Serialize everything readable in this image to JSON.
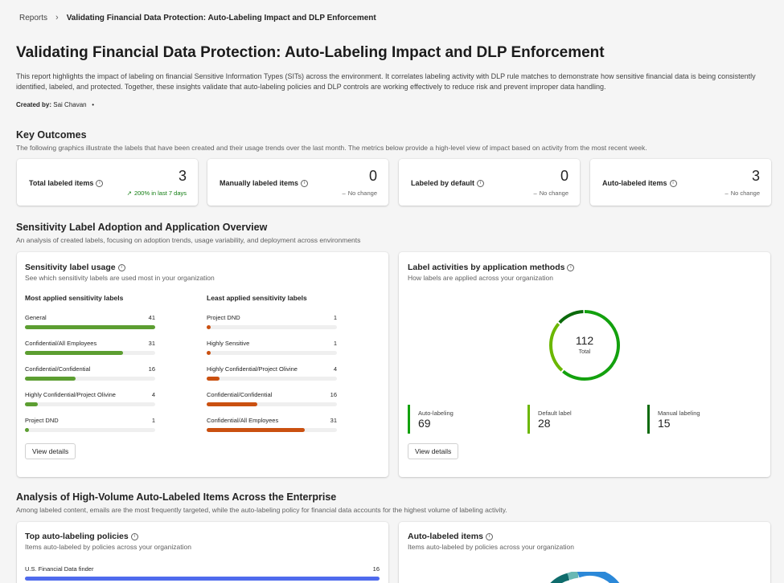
{
  "breadcrumb": {
    "root": "Reports",
    "current": "Validating Financial Data Protection: Auto-Labeling Impact and DLP Enforcement"
  },
  "report": {
    "title": "Validating Financial Data Protection: Auto-Labeling Impact and DLP Enforcement",
    "description": "This report highlights the impact of labeling on financial Sensitive Information Types (SITs) across the environment. It correlates labeling activity with DLP rule matches to demonstrate how sensitive financial data is being consistently identified, labeled, and protected. Together, these insights validate that auto-labeling policies and DLP controls are working effectively to reduce risk and prevent improper data handling.",
    "created_by_label": "Created by:",
    "created_by": "Sai Chavan"
  },
  "key_outcomes": {
    "title": "Key Outcomes",
    "subtitle": "The following graphics illustrate the labels that have been created and their usage trends over the last month. The metrics below provide a high-level view of impact based on activity from the most recent week.",
    "kpis": [
      {
        "label": "Total labeled items",
        "value": "3",
        "delta": "200% in last 7 days",
        "trend": "up"
      },
      {
        "label": "Manually labeled items",
        "value": "0",
        "delta": "No change",
        "trend": "flat"
      },
      {
        "label": "Labeled by default",
        "value": "0",
        "delta": "No change",
        "trend": "flat"
      },
      {
        "label": "Auto-labeled items",
        "value": "3",
        "delta": "No change",
        "trend": "flat"
      }
    ]
  },
  "adoption": {
    "title": "Sensitivity Label Adoption and Application Overview",
    "subtitle": "An analysis of created labels, focusing on adoption trends, usage variability, and deployment across environments",
    "usage": {
      "title": "Sensitivity label usage",
      "subtitle": "See which sensitivity labels are used most in your organization",
      "most_title": "Most applied sensitivity labels",
      "least_title": "Least applied sensitivity labels",
      "max": 41,
      "most": [
        {
          "label": "General",
          "value": 41
        },
        {
          "label": "Confidential/All Employees",
          "value": 31
        },
        {
          "label": "Confidential/Confidential",
          "value": 16
        },
        {
          "label": "Highly Confidential/Project Olivine",
          "value": 4
        },
        {
          "label": "Project DND",
          "value": 1
        }
      ],
      "least": [
        {
          "label": "Project DND",
          "value": 1
        },
        {
          "label": "Highly Sensitive",
          "value": 1
        },
        {
          "label": "Highly Confidential/Project Olivine",
          "value": 4
        },
        {
          "label": "Confidential/Confidential",
          "value": 16
        },
        {
          "label": "Confidential/All Employees",
          "value": 31
        }
      ],
      "most_color": "#5c9e31",
      "least_color": "#ca5010",
      "button": "View details"
    },
    "methods": {
      "title": "Label activities by application methods",
      "subtitle": "How labels are applied across your organization",
      "total": "112",
      "total_label": "Total",
      "items": [
        {
          "label": "Auto-labeling",
          "value": 69,
          "color": "#13a10e"
        },
        {
          "label": "Default label",
          "value": 28,
          "color": "#6bb700"
        },
        {
          "label": "Manual labeling",
          "value": 15,
          "color": "#0b6a0b"
        }
      ],
      "button": "View details"
    }
  },
  "auto_analysis": {
    "title": "Analysis of High-Volume Auto-Labeled Items Across the Enterprise",
    "subtitle": "Among labeled content, emails are the most frequently targeted, while the auto-labeling policy for financial data accounts for the highest volume of labeling activity.",
    "policies": {
      "title": "Top auto-labeling policies",
      "subtitle": "Items auto-labeled by policies across your organization",
      "items": [
        {
          "label": "U.S. Financial Data finder",
          "value": 16
        }
      ],
      "color": "#4f6bed"
    },
    "items": {
      "title": "Auto-labeled items",
      "subtitle": "Items auto-labeled by policies across your organization"
    }
  }
}
